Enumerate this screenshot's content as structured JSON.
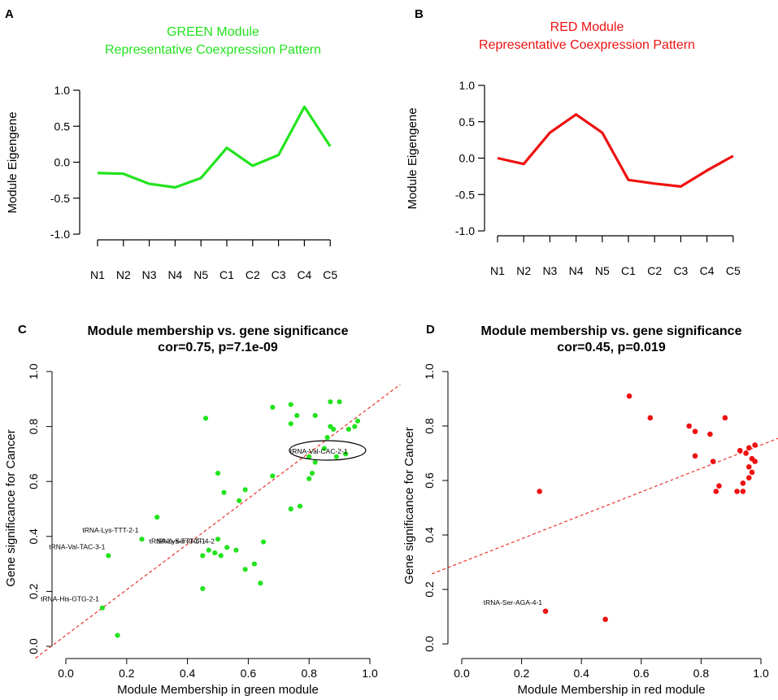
{
  "colors": {
    "green": "#22e31e",
    "red": "#ee1111",
    "fit": "#e8342a",
    "axis": "#000000"
  },
  "chart_data": [
    {
      "panel": "A",
      "type": "line",
      "title_lines": [
        "GREEN Module",
        "Representative Coexpression Pattern"
      ],
      "color": "#22e31e",
      "ylabel": "Module Eigengene",
      "xlabel": "",
      "ylim": [
        -1.0,
        1.0
      ],
      "yticks": [
        "1.0",
        "0.5",
        "0.0",
        "-0.5",
        "-1.0"
      ],
      "yticks_values": [
        1.0,
        0.5,
        0.0,
        -0.5,
        -1.0
      ],
      "categories": [
        "N1",
        "N2",
        "N3",
        "N4",
        "N5",
        "C1",
        "C2",
        "C3",
        "C4",
        "C5"
      ],
      "values": [
        -0.15,
        -0.16,
        -0.3,
        -0.35,
        -0.22,
        0.2,
        -0.05,
        0.1,
        0.77,
        0.22
      ]
    },
    {
      "panel": "B",
      "type": "line",
      "title_lines": [
        "RED Module",
        "Representative Coexpression Pattern"
      ],
      "color": "#ee1111",
      "ylabel": "Module Eigengene",
      "xlabel": "",
      "ylim": [
        -1.0,
        1.0
      ],
      "yticks": [
        "1.0",
        "0.5",
        "0.0",
        "-0.5",
        "-1.0"
      ],
      "yticks_values": [
        1.0,
        0.5,
        0.0,
        -0.5,
        -1.0
      ],
      "categories": [
        "N1",
        "N2",
        "N3",
        "N4",
        "N5",
        "C1",
        "C2",
        "C3",
        "C4",
        "C5"
      ],
      "values": [
        0.0,
        -0.08,
        0.35,
        0.6,
        0.35,
        -0.3,
        -0.35,
        -0.39,
        -0.17,
        0.03
      ]
    },
    {
      "panel": "C",
      "type": "scatter",
      "title": "Module membership vs. gene significance",
      "subtitle": "cor=0.75, p=7.1e-09",
      "color": "#22e31e",
      "xlabel": "Module Membership in green module",
      "ylabel": "Gene significance for Cancer",
      "xlim": [
        0.0,
        1.0
      ],
      "ylim": [
        0.0,
        1.0
      ],
      "xticks": [
        "0.0",
        "0.2",
        "0.4",
        "0.6",
        "0.8",
        "1.0"
      ],
      "yticks": [
        "0.0",
        "0.2",
        "0.4",
        "0.6",
        "0.8",
        "1.0"
      ],
      "fit": {
        "intercept": 0.04,
        "slope": 0.83
      },
      "points": [
        [
          0.17,
          0.04
        ],
        [
          0.12,
          0.14
        ],
        [
          0.14,
          0.33
        ],
        [
          0.25,
          0.39
        ],
        [
          0.3,
          0.47
        ],
        [
          0.45,
          0.21
        ],
        [
          0.45,
          0.33
        ],
        [
          0.47,
          0.35
        ],
        [
          0.49,
          0.34
        ],
        [
          0.5,
          0.39
        ],
        [
          0.51,
          0.33
        ],
        [
          0.53,
          0.36
        ],
        [
          0.56,
          0.35
        ],
        [
          0.59,
          0.28
        ],
        [
          0.62,
          0.3
        ],
        [
          0.64,
          0.23
        ],
        [
          0.65,
          0.38
        ],
        [
          0.46,
          0.83
        ],
        [
          0.5,
          0.63
        ],
        [
          0.52,
          0.56
        ],
        [
          0.57,
          0.53
        ],
        [
          0.59,
          0.57
        ],
        [
          0.68,
          0.62
        ],
        [
          0.68,
          0.87
        ],
        [
          0.74,
          0.88
        ],
        [
          0.74,
          0.81
        ],
        [
          0.76,
          0.84
        ],
        [
          0.74,
          0.5
        ],
        [
          0.77,
          0.51
        ],
        [
          0.8,
          0.61
        ],
        [
          0.81,
          0.63
        ],
        [
          0.8,
          0.69
        ],
        [
          0.82,
          0.67
        ],
        [
          0.82,
          0.84
        ],
        [
          0.85,
          0.72
        ],
        [
          0.86,
          0.76
        ],
        [
          0.87,
          0.8
        ],
        [
          0.88,
          0.79
        ],
        [
          0.87,
          0.89
        ],
        [
          0.89,
          0.69
        ],
        [
          0.9,
          0.89
        ],
        [
          0.92,
          0.7
        ],
        [
          0.93,
          0.79
        ],
        [
          0.95,
          0.8
        ],
        [
          0.96,
          0.82
        ]
      ],
      "labels": [
        {
          "text": "tRNA-His-GTG-2-1",
          "x": 0.12,
          "y": 0.14
        },
        {
          "text": "tRNA-Val-TAC-3-1",
          "x": 0.14,
          "y": 0.33
        },
        {
          "text": "tRNA-Lys-TTT-2-1",
          "x": 0.25,
          "y": 0.39
        },
        {
          "text": "tRNA-Lys-TTT-6-1",
          "x": 0.47,
          "y": 0.35
        },
        {
          "text": "tRNA-Ser-GCT-4-2",
          "x": 0.5,
          "y": 0.35
        },
        {
          "text": "tRNA-Val-CAC-2-1",
          "x": 0.85,
          "y": 0.71
        }
      ],
      "highlight_label": "tRNA-Val-CAC-2-1"
    },
    {
      "panel": "D",
      "type": "scatter",
      "title": "Module membership vs. gene significance",
      "subtitle": "cor=0.45, p=0.019",
      "color": "#ee1111",
      "xlabel": "Module Membership in red module",
      "ylabel": "Gene significance for Cancer",
      "xlim": [
        0.0,
        1.0
      ],
      "ylim": [
        0.0,
        1.0
      ],
      "xticks": [
        "0.0",
        "0.2",
        "0.4",
        "0.6",
        "0.8",
        "1.0"
      ],
      "yticks": [
        "0.0",
        "0.2",
        "0.4",
        "0.6",
        "0.8",
        "1.0"
      ],
      "fit": {
        "intercept": 0.3,
        "slope": 0.43
      },
      "points": [
        [
          0.26,
          0.56
        ],
        [
          0.28,
          0.12
        ],
        [
          0.48,
          0.09
        ],
        [
          0.56,
          0.91
        ],
        [
          0.63,
          0.83
        ],
        [
          0.76,
          0.8
        ],
        [
          0.78,
          0.78
        ],
        [
          0.78,
          0.69
        ],
        [
          0.83,
          0.77
        ],
        [
          0.84,
          0.67
        ],
        [
          0.85,
          0.56
        ],
        [
          0.86,
          0.58
        ],
        [
          0.88,
          0.83
        ],
        [
          0.92,
          0.56
        ],
        [
          0.93,
          0.71
        ],
        [
          0.94,
          0.59
        ],
        [
          0.94,
          0.56
        ],
        [
          0.95,
          0.7
        ],
        [
          0.96,
          0.65
        ],
        [
          0.96,
          0.61
        ],
        [
          0.97,
          0.63
        ],
        [
          0.96,
          0.72
        ],
        [
          0.97,
          0.68
        ],
        [
          0.98,
          0.67
        ],
        [
          0.98,
          0.73
        ]
      ],
      "labels": [
        {
          "text": "tRNA-Ser-AGA-4-1",
          "x": 0.28,
          "y": 0.12
        }
      ]
    }
  ]
}
